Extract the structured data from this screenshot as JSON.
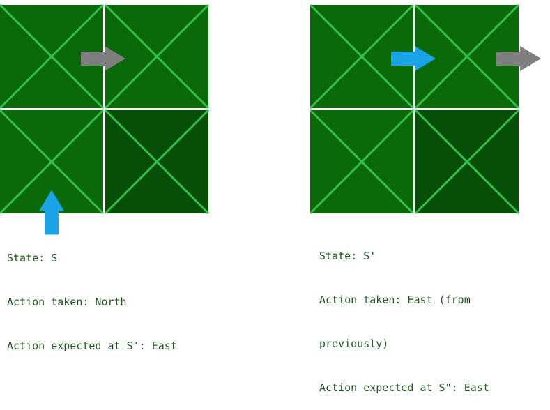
{
  "colors": {
    "tile": "#0a6a0a",
    "tile_dark": "#074f07",
    "diagonal": "#33c04a",
    "border": "#ffffff",
    "agent_arrow": "#1aa3e6",
    "expected_arrow": "#7f7f7f",
    "text": "#1e5a1e"
  },
  "panels": [
    {
      "grid": "2x2",
      "dark_cell": "bottom-right",
      "agent_arrow": {
        "direction": "north",
        "cell": "bottom-left",
        "color": "agent_arrow"
      },
      "expected_arrow": {
        "direction": "east",
        "cell": "top-left",
        "color": "expected_arrow"
      },
      "caption": {
        "line1": "State: S",
        "line2": "Action taken: North",
        "line3": "Action expected at S': East"
      }
    },
    {
      "grid": "2x2",
      "dark_cell": "bottom-right",
      "agent_arrow": {
        "direction": "east",
        "cell": "top-left",
        "color": "agent_arrow"
      },
      "expected_arrow": {
        "direction": "east",
        "cell": "top-right",
        "color": "expected_arrow"
      },
      "caption": {
        "line1": "State: S'",
        "line2": "Action taken: East (from",
        "line3": "previously)",
        "line4": "Action expected at S\": East"
      }
    }
  ]
}
